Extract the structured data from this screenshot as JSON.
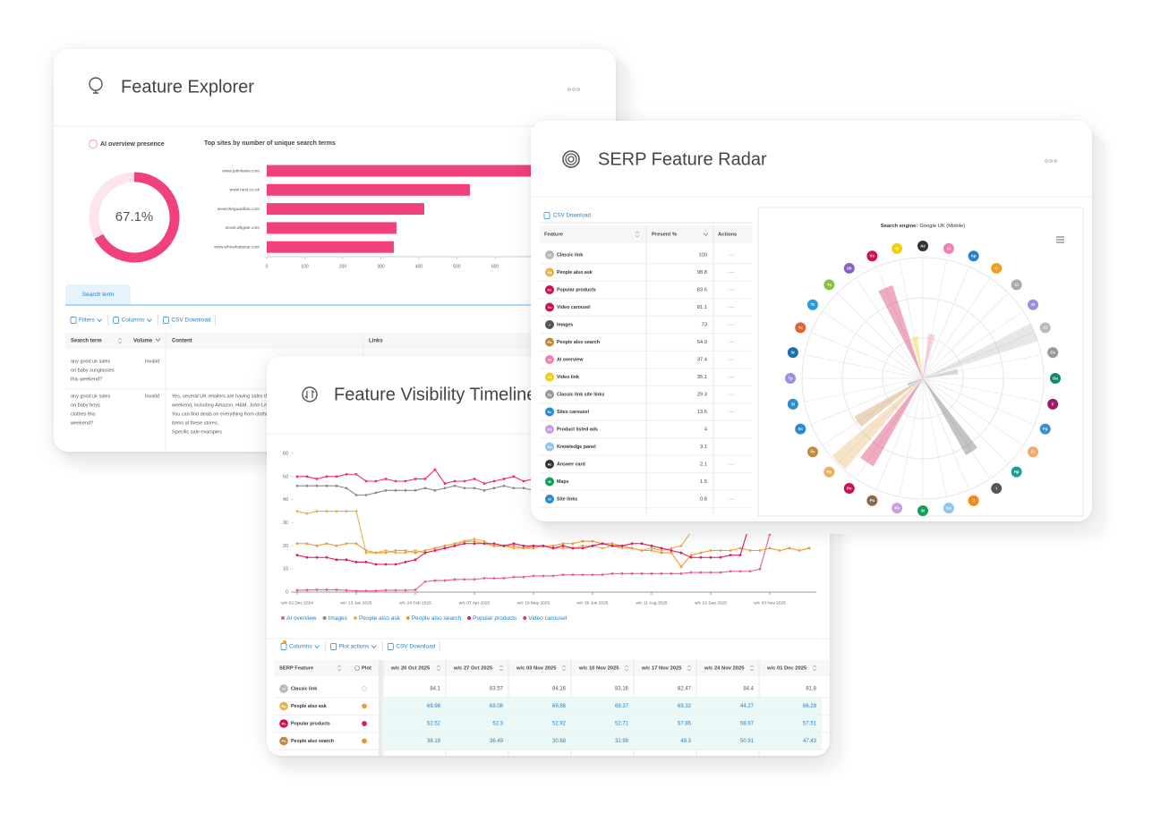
{
  "explorer": {
    "title": "Feature Explorer",
    "donut": {
      "title": "AI overview presence",
      "value": 67.1,
      "value_label": "67.1%",
      "color": "#f0407e"
    },
    "bar_chart": {
      "type": "bar",
      "title": "Top sites by number of unique search terms",
      "categories": [
        "www.johnlewis.com",
        "www.next.co.uk",
        "www.theguardian.com",
        "smart.dhgate.com",
        "www.whowhatwear.com"
      ],
      "values": [
        740,
        534,
        414,
        341,
        334
      ],
      "color": "#f0407e",
      "xlim": [
        0,
        700
      ],
      "xticks": [
        0,
        100,
        200,
        300,
        400,
        500,
        600
      ]
    },
    "tab": "Search term",
    "toolbar": [
      "Filters",
      "Columns",
      "CSV Download"
    ],
    "table": {
      "headers": [
        "Search term",
        "Volume",
        "Content",
        "Links"
      ],
      "rows": [
        {
          "search_term": [
            "any good uk sales",
            "on baby sunglasses",
            "this weekend?"
          ],
          "volume": "Invalid"
        },
        {
          "search_term": [
            "any good uk sales",
            "on baby boys",
            "clothes this",
            "weekend?"
          ],
          "volume": "Invalid",
          "content": [
            "Yes, several UK retailers are having sales this",
            "weekend, including Amazon, H&M, John Lewis",
            "You can find deals on everything from clothing",
            "items at these stores.",
            "Specific sale examples"
          ]
        }
      ]
    }
  },
  "timeline": {
    "title": "Feature Visibility Timeline",
    "chart": {
      "type": "line",
      "categories": [
        "w/c 02 Dec 2024",
        null,
        null,
        null,
        null,
        null,
        "w/c 13 Jan 2025",
        null,
        null,
        null,
        null,
        null,
        "w/c 24 Feb 2025",
        null,
        null,
        null,
        null,
        null,
        "w/c 07 Apr 2025",
        null,
        null,
        null,
        null,
        null,
        "w/c 19 May 2025",
        null,
        null,
        null,
        null,
        null,
        "w/c 30 Jun 2025",
        null,
        null,
        null,
        null,
        null,
        "w/c 11 Aug 2025",
        null,
        null,
        null,
        null,
        null,
        "w/c 22 Sep 2025",
        null,
        null,
        null,
        null,
        null,
        "w/c 03 Nov 2025",
        null,
        null,
        null,
        null
      ],
      "ylim": [
        0,
        60
      ],
      "yticks": [
        0,
        10,
        20,
        30,
        40,
        50,
        60
      ],
      "grid": false,
      "series": [
        {
          "name": "AI overview",
          "color": "#f05a9a",
          "values": [
            0.8,
            0.9,
            1,
            1,
            1,
            0.8,
            0.5,
            0.5,
            0.5,
            0.8,
            0.8,
            0.8,
            1,
            4.5,
            5,
            5,
            5.5,
            5.5,
            5.5,
            6,
            6,
            6,
            6.5,
            6.5,
            7,
            7,
            7,
            7.5,
            7.5,
            7.5,
            7.5,
            7.5,
            8,
            8,
            8,
            8,
            8,
            8,
            8,
            8,
            8.5,
            8.5,
            8.5,
            8.5,
            9,
            9,
            9,
            10,
            25,
            27,
            27,
            28,
            28
          ]
        },
        {
          "name": "Images",
          "color": "#8a8a8a",
          "values": [
            46,
            46,
            46,
            46,
            46,
            45,
            42,
            42,
            43,
            44,
            44,
            44,
            44,
            45,
            44,
            45,
            46,
            45,
            45,
            44,
            45,
            46,
            45,
            45,
            44,
            46,
            45,
            45,
            44,
            45,
            45,
            46,
            45,
            45,
            46,
            45,
            45,
            44,
            45,
            46,
            45,
            45,
            46,
            45,
            44,
            45,
            45,
            46,
            45,
            45,
            44,
            45,
            45
          ]
        },
        {
          "name": "People also ask",
          "color": "#e6b24e",
          "values": [
            35,
            34,
            35,
            35,
            35,
            35,
            35,
            17,
            17,
            18,
            17,
            17,
            18,
            17,
            18,
            19,
            20,
            22,
            23,
            22,
            20,
            20,
            19,
            19,
            20,
            20,
            19,
            19,
            19,
            20,
            20,
            19,
            20,
            19,
            19,
            18,
            19,
            18,
            19,
            20,
            26,
            40,
            41,
            42,
            42,
            43,
            42,
            43,
            42,
            43,
            42,
            43,
            42
          ]
        },
        {
          "name": "People also search",
          "color": "#f0983c",
          "values": [
            21,
            21,
            20,
            21,
            20,
            21,
            21,
            18,
            17,
            17,
            18,
            18,
            17,
            18,
            19,
            20,
            21,
            22,
            22,
            21,
            20,
            20,
            20,
            19,
            19,
            20,
            20,
            21,
            21,
            22,
            22,
            21,
            21,
            20,
            19,
            18,
            18,
            17,
            17,
            11,
            16,
            17,
            18,
            18,
            18,
            19,
            18,
            18,
            19,
            18,
            19,
            18,
            19
          ]
        },
        {
          "name": "Popular products",
          "color": "#e0175f",
          "values": [
            16,
            15,
            15,
            15,
            14,
            14,
            13,
            13,
            12,
            12,
            12,
            13,
            14,
            17,
            18,
            19,
            20,
            21,
            21,
            21,
            21,
            20,
            21,
            20,
            20,
            20,
            19,
            20,
            19,
            19,
            20,
            21,
            20,
            20,
            21,
            21,
            20,
            19,
            18,
            17,
            15,
            15,
            15,
            15,
            16,
            16,
            30,
            29,
            33,
            34,
            34,
            34,
            35
          ]
        },
        {
          "name": "Video carousel",
          "color": "#f0306e",
          "values": [
            50,
            50,
            49,
            50,
            50,
            51,
            51,
            48,
            48,
            49,
            48,
            48,
            49,
            49,
            53,
            47,
            48,
            48,
            49,
            47,
            48,
            49,
            50,
            48,
            49,
            48,
            47,
            48,
            49,
            48,
            48,
            47,
            48,
            49,
            48,
            48,
            47,
            48,
            49,
            48,
            48,
            49,
            48,
            49,
            48,
            48,
            49,
            48,
            48,
            49,
            48,
            48,
            49
          ]
        }
      ]
    },
    "toolbar": [
      "Columns",
      "Plot actions",
      "CSV Download"
    ],
    "table": {
      "headers": [
        "SERP Feature",
        "Plot",
        "w/c 20 Oct 2025",
        "w/c 27 Oct 2025",
        "w/c 03 Nov 2025",
        "w/c 10 Nov 2025",
        "w/c 17 Nov 2025",
        "w/c 24 Nov 2025",
        "w/c 01 Dec 2025"
      ],
      "rows": [
        {
          "icon": "Cl",
          "icon_color": "#b8b8b8",
          "feature": "Classic link",
          "values": [
            84.1,
            83.57,
            84.16,
            83.16,
            82.47,
            84.4,
            81.8
          ]
        },
        {
          "icon": "Pp",
          "icon_color": "#e6b24e",
          "feature": "People also ask",
          "plot_color": "#e6a23c",
          "values": [
            69.98,
            69.08,
            69.86,
            69.37,
            69.32,
            44.27,
            66.29
          ]
        },
        {
          "icon": "Pe",
          "icon_color": "#d0104c",
          "feature": "Popular products",
          "plot_color": "#e0175f",
          "values": [
            52.52,
            52.3,
            52.92,
            52.71,
            57.85,
            58.67,
            57.51
          ]
        },
        {
          "icon": "Ps",
          "icon_color": "#c08a40",
          "feature": "People also search",
          "plot_color": "#d89a3a",
          "values": [
            38.18,
            36.49,
            30.68,
            32.99,
            49.3,
            50.91,
            47.43
          ]
        }
      ]
    }
  },
  "radar": {
    "title": "SERP Feature Radar",
    "csv": "CSV Download",
    "table": {
      "headers": [
        "Feature",
        "Present %",
        "Actions"
      ],
      "rows": [
        {
          "icon": "Cl",
          "color": "#b8b8b8",
          "feature": "Classic link",
          "present": 100,
          "actions": "···"
        },
        {
          "icon": "Pp",
          "color": "#e6b24e",
          "feature": "People also ask",
          "present": 98.8,
          "actions": "···"
        },
        {
          "icon": "Pe",
          "color": "#d0104c",
          "feature": "Popular products",
          "present": 83.6,
          "actions": "···"
        },
        {
          "icon": "Vc",
          "color": "#d0104c",
          "feature": "Video carousel",
          "present": 81.1,
          "actions": "···"
        },
        {
          "icon": "I",
          "color": "#555555",
          "feature": "Images",
          "present": 73,
          "actions": "···"
        },
        {
          "icon": "Ps",
          "color": "#c08a40",
          "feature": "People also search",
          "present": 64.9,
          "actions": "···"
        },
        {
          "icon": "AI",
          "color": "#f47fb0",
          "feature": "AI overview",
          "present": 37.4,
          "actions": "···"
        },
        {
          "icon": "Vi",
          "color": "#f0d010",
          "feature": "Video link",
          "present": 35.1,
          "actions": "···"
        },
        {
          "icon": "Cs",
          "color": "#999999",
          "feature": "Classic link site links",
          "present": 29.3,
          "actions": "···"
        },
        {
          "icon": "Sc",
          "color": "#2a8ad0",
          "feature": "Sites carousel",
          "present": 13.5,
          "actions": "···"
        },
        {
          "icon": "Pa",
          "color": "#c8a0e0",
          "feature": "Product listed ads",
          "present": 4
        },
        {
          "icon": "Kp",
          "color": "#8ec4ee",
          "feature": "Knowledge panel",
          "present": 3.1
        },
        {
          "icon": "Ac",
          "color": "#333333",
          "feature": "Answer card",
          "present": 2.1,
          "actions": "···"
        },
        {
          "icon": "M",
          "color": "#14a05a",
          "feature": "Maps",
          "present": 1.5
        },
        {
          "icon": "Sl",
          "color": "#2a8ad0",
          "feature": "Site links",
          "present": 0.8,
          "actions": "···"
        }
      ]
    },
    "chart": {
      "type": "polar_bar",
      "engine_label": "Search engine:",
      "engine": "Google UK (Mobile)",
      "rlim": [
        0,
        100
      ],
      "labels": [
        "Ac",
        "AI",
        "Ap",
        "C",
        "Cl",
        "AI",
        "Cl",
        "Cs",
        "Da",
        "F",
        "Fp",
        "Fr",
        "Hp",
        "I",
        "J",
        "Kp",
        "M",
        "Pa",
        "Pa",
        "Pe",
        "Pp",
        "Ps",
        "Sc",
        "Sl",
        "Tp",
        "Sr",
        "Ts",
        "Tc",
        "Tx",
        "Vb",
        "Vc",
        "Vi"
      ],
      "colors": [
        "#333333",
        "#f47fb0",
        "#2a7fd4",
        "#f0a020",
        "#aaaaaa",
        "#9b8fe0",
        "#bbbbbb",
        "#999999",
        "#0f8a6e",
        "#a0146a",
        "#3a8fd0",
        "#f5a868",
        "#1aa08a",
        "#555555",
        "#f08a1a",
        "#8ec4ee",
        "#14a05a",
        "#c8a0e0",
        "#8a6a40",
        "#d0104c",
        "#e8b060",
        "#c08a40",
        "#2a8ad0",
        "#2a8ad0",
        "#9b8fe0",
        "#1a70a8",
        "#e8602a",
        "#2a9ad8",
        "#8ac040",
        "#8a60c0",
        "#d0104c",
        "#f0d010"
      ],
      "values": [
        2.1,
        37.4,
        null,
        null,
        null,
        null,
        100,
        29.3,
        null,
        null,
        null,
        null,
        null,
        73,
        null,
        3.1,
        1.5,
        4,
        null,
        83.6,
        98.8,
        64.9,
        13.5,
        0.8,
        null,
        null,
        null,
        null,
        null,
        null,
        81.1,
        35.1
      ]
    }
  }
}
